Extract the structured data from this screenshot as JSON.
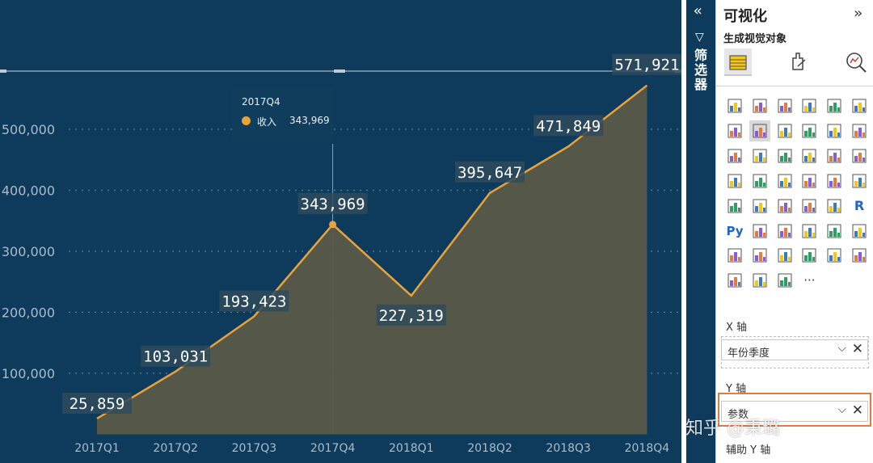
{
  "chart_data": {
    "type": "area",
    "categories": [
      "2017Q1",
      "2017Q2",
      "2017Q3",
      "2017Q4",
      "2018Q1",
      "2018Q2",
      "2018Q3",
      "2018Q4"
    ],
    "series": [
      {
        "name": "收入",
        "values": [
          25859,
          103031,
          193423,
          343969,
          227319,
          395647,
          471849,
          571921
        ]
      }
    ],
    "data_labels": [
      "25,859",
      "103,031",
      "193,423",
      "343,969",
      "227,319",
      "395,647",
      "471,849",
      "571,921"
    ],
    "y_ticks": [
      100000,
      200000,
      300000,
      400000,
      500000
    ],
    "y_tick_labels": [
      "100,000",
      "200,000",
      "300,000",
      "400,000",
      "500,000"
    ],
    "ylim": [
      0,
      600000
    ],
    "grid": true,
    "line_color": "#e8a33a",
    "fill_color": "#5a5a48",
    "background": "#0e3b5c"
  },
  "tooltip": {
    "title": "2017Q4",
    "series": "收入",
    "value": "343,969",
    "dot_color": "#e8a33a"
  },
  "filters_pane": {
    "label": "筛选器",
    "expand_icon": "double-chevron-left-icon",
    "funnel_icon": "funnel-icon"
  },
  "visualizations": {
    "title": "可视化",
    "collapse_icon": "double-chevron-right-icon",
    "build_title": "生成视觉对象",
    "build_tabs": [
      "fields-icon",
      "format-icon",
      "analytics-icon"
    ],
    "viz_icons": [
      "stacked-bar-icon",
      "stacked-column-icon",
      "clustered-bar-icon",
      "clustered-column-icon",
      "100-bar-icon",
      "100-column-icon",
      "line-chart-icon",
      "area-chart-icon",
      "stacked-area-icon",
      "line-column-icon",
      "line-clustered-icon",
      "ribbon-chart-icon",
      "waterfall-icon",
      "funnel-chart-icon",
      "scatter-icon",
      "pie-chart-icon",
      "donut-chart-icon",
      "treemap-icon",
      "map-icon",
      "filled-map-icon",
      "shape-map-icon",
      "azure-map-icon",
      "gauge-icon",
      "card-icon",
      "multirow-card-icon",
      "kpi-icon",
      "slicer-icon",
      "table-icon",
      "matrix-icon",
      "r-visual-icon",
      "python-visual-icon",
      "key-influencers-icon",
      "decomposition-tree-icon",
      "qa-icon",
      "narrative-icon",
      "paginated-report-icon",
      "power-apps-icon",
      "power-automate-icon",
      "arcgis-icon",
      "sankey-icon",
      "tiles-icon",
      "play-axis-icon",
      "search-icon",
      "refresh-icon",
      "filter-visual-icon",
      "more-icon"
    ],
    "more_label": "···",
    "x_axis_label": "X 轴",
    "x_field": "年份季度",
    "y_axis_label": "Y 轴",
    "y_field": "参数",
    "secondary_y_label": "辅助 Y 轴",
    "highlight_color": "#e27b3b"
  },
  "watermark": "知乎 @秉璐"
}
